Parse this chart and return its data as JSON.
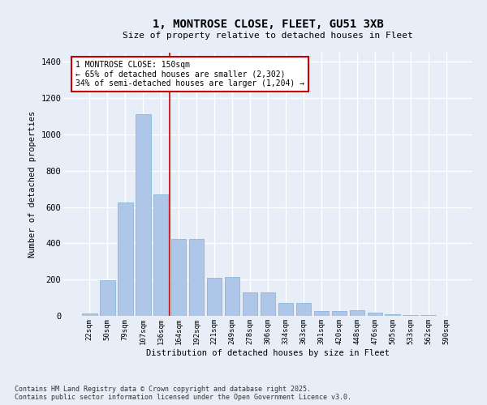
{
  "title_line1": "1, MONTROSE CLOSE, FLEET, GU51 3XB",
  "title_line2": "Size of property relative to detached houses in Fleet",
  "xlabel": "Distribution of detached houses by size in Fleet",
  "ylabel": "Number of detached properties",
  "categories": [
    "22sqm",
    "50sqm",
    "79sqm",
    "107sqm",
    "136sqm",
    "164sqm",
    "192sqm",
    "221sqm",
    "249sqm",
    "278sqm",
    "306sqm",
    "334sqm",
    "363sqm",
    "391sqm",
    "420sqm",
    "448sqm",
    "476sqm",
    "505sqm",
    "533sqm",
    "562sqm",
    "590sqm"
  ],
  "values": [
    15,
    195,
    625,
    1110,
    670,
    425,
    425,
    210,
    215,
    130,
    130,
    70,
    70,
    25,
    25,
    30,
    20,
    8,
    5,
    3,
    2
  ],
  "bar_color": "#aec6e8",
  "bar_edge_color": "#7aafd4",
  "background_color": "#e8eef7",
  "grid_color": "#ffffff",
  "annotation_text": "1 MONTROSE CLOSE: 150sqm\n← 65% of detached houses are smaller (2,302)\n34% of semi-detached houses are larger (1,204) →",
  "annotation_box_color": "#ffffff",
  "annotation_box_edge": "#cc0000",
  "vline_x": 4.5,
  "vline_color": "#cc0000",
  "ylim": [
    0,
    1450
  ],
  "yticks": [
    0,
    200,
    400,
    600,
    800,
    1000,
    1200,
    1400
  ],
  "footnote": "Contains HM Land Registry data © Crown copyright and database right 2025.\nContains public sector information licensed under the Open Government Licence v3.0."
}
